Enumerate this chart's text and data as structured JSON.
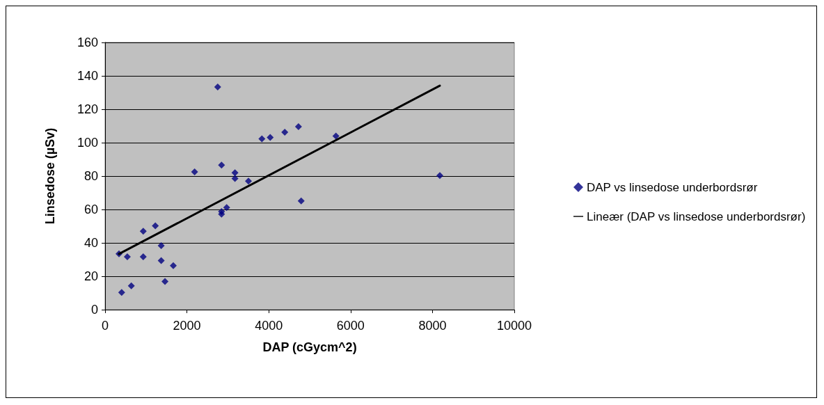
{
  "chart_data": {
    "type": "scatter",
    "xlabel": "DAP (cGycm^2)",
    "ylabel": "Linsedose (µSv)",
    "xlim": [
      0,
      10000
    ],
    "xticks": [
      0,
      2000,
      4000,
      6000,
      8000,
      10000
    ],
    "ylim": [
      0,
      160
    ],
    "yticks": [
      0,
      20,
      40,
      60,
      80,
      100,
      120,
      140,
      160
    ],
    "grid": "y",
    "legend": "right",
    "marker": "diamond",
    "series": [
      {
        "name": "DAP vs linsedose underbordsrør",
        "color": "#000080",
        "x": [
          340,
          405,
          543,
          641,
          932,
          932,
          1228,
          1371,
          1371,
          1464,
          1667,
          2188,
          2752,
          2845,
          2845,
          2845,
          2971,
          3174,
          3174,
          3503,
          3832,
          4035,
          4391,
          4726,
          4792,
          5641,
          8180
        ],
        "values": [
          33.4,
          10.3,
          31.7,
          14.3,
          47,
          31.7,
          50.2,
          38.3,
          29.4,
          16.9,
          26.4,
          82.5,
          133.3,
          86.6,
          57.2,
          58.8,
          61.1,
          82,
          78.5,
          77,
          102.3,
          103.1,
          106.3,
          109.6,
          65.1,
          104,
          80.3
        ]
      },
      {
        "name": "Lineær (DAP vs linsedose underbordsrør)",
        "type": "line",
        "color": "#000000",
        "marker": "none",
        "line_style": "solid",
        "x": [
          340,
          8180
        ],
        "values": [
          33.4,
          134.1
        ]
      }
    ]
  }
}
